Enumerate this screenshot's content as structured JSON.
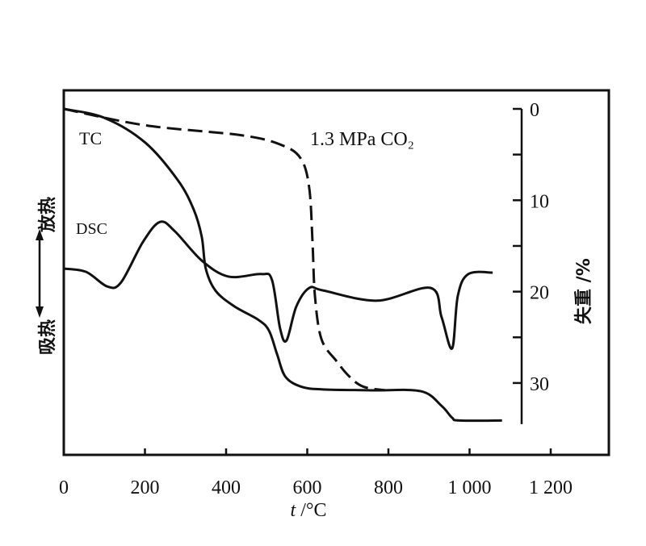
{
  "chart_data": {
    "type": "line",
    "title": "",
    "xlabel": "t /°C",
    "xlabel_italic_part": "t",
    "xlabel_unit": " /°C",
    "ylabel_left": "吸热 ←→ 放热",
    "ylabel_left_parts": [
      "吸热",
      "放热"
    ],
    "ylabel_right": "失重 /%",
    "xlim": [
      0,
      1350
    ],
    "xticks": [
      0,
      200,
      400,
      600,
      800,
      1000,
      1200
    ],
    "xtick_labels": [
      "0",
      "200",
      "400",
      "600",
      "800",
      "1 000",
      "1 200"
    ],
    "right_axis": {
      "range": [
        0,
        34.5
      ],
      "ticks": [
        0,
        10,
        20,
        30
      ],
      "minor_ticks": [
        5,
        15,
        25
      ],
      "inverted": true
    },
    "grid": false,
    "annotations": [
      "TC",
      "DSC",
      "1.3 MPa CO₂"
    ],
    "series": [
      {
        "name": "TC",
        "axis": "right",
        "style": "solid",
        "x": [
          0,
          101,
          201,
          281,
          320,
          340,
          350,
          374,
          420,
          480,
          506,
          526,
          546,
          585,
          639,
          760,
          880,
          931,
          957,
          975,
          1080
        ],
        "y": [
          0,
          1.0,
          3.7,
          7.8,
          11.0,
          14.0,
          17.5,
          19.9,
          21.6,
          23.1,
          24.3,
          26.9,
          29.3,
          30.4,
          30.7,
          30.8,
          30.9,
          32.5,
          33.8,
          34.1,
          34.1
        ]
      },
      {
        "name": "1.3 MPa CO₂",
        "axis": "right",
        "style": "dashed",
        "x": [
          0,
          201,
          440,
          539,
          585,
          605,
          613,
          619,
          635,
          672,
          704,
          738,
          792
        ],
        "y": [
          0,
          1.8,
          2.9,
          4.0,
          5.5,
          8.7,
          14.6,
          20.5,
          25.2,
          27.6,
          29.3,
          30.4,
          30.8
        ]
      },
      {
        "name": "DSC",
        "axis": "left",
        "style": "solid",
        "units": "relative (up = exothermic)",
        "x": [
          0,
          55,
          107,
          141,
          195,
          237,
          274,
          340,
          406,
          486,
          513,
          533,
          549,
          573,
          605,
          639,
          772,
          904,
          931,
          957,
          971,
          997,
          1057
        ],
        "y": [
          51.1,
          50.2,
          46.2,
          47.3,
          58.4,
          63.9,
          61.3,
          53.3,
          48.9,
          49.6,
          48.0,
          34.7,
          31.4,
          40.7,
          45.8,
          45.1,
          42.3,
          45.8,
          37.8,
          29.2,
          43.6,
          49.6,
          50.0
        ]
      }
    ]
  }
}
